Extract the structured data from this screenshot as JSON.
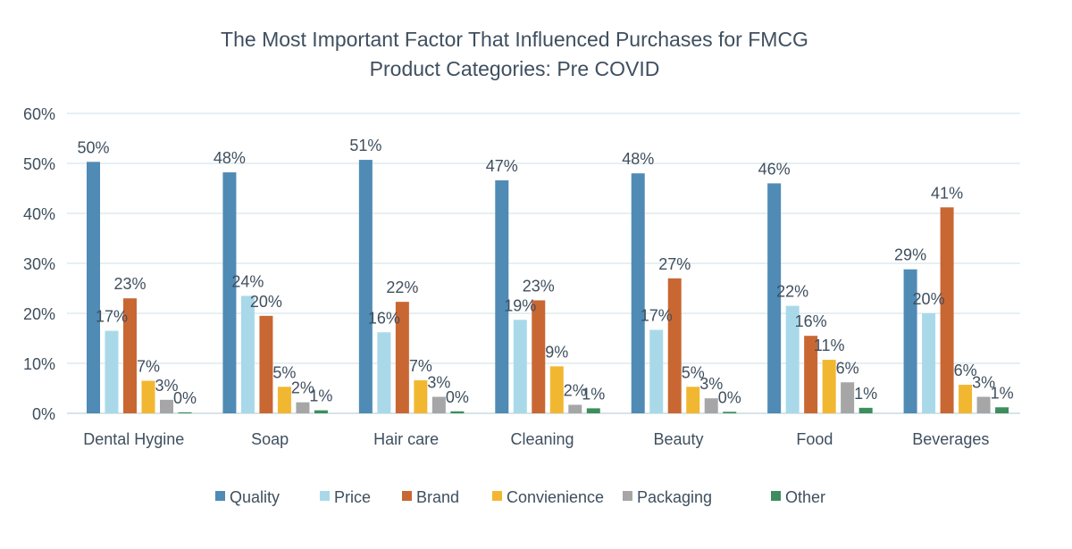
{
  "chart_data": {
    "type": "bar",
    "title": "The Most Important Factor That Influenced Purchases for FMCG Product Categories: Pre COVID",
    "title_lines": [
      "The Most Important Factor That Influenced Purchases for FMCG",
      "Product Categories: Pre COVID"
    ],
    "xlabel": "",
    "ylabel": "",
    "ylim": [
      0,
      60
    ],
    "yticks": [
      "0%",
      "10%",
      "20%",
      "30%",
      "40%",
      "50%",
      "60%"
    ],
    "grid": true,
    "legend_position": "bottom",
    "categories": [
      "Dental Hygine",
      "Soap",
      "Hair care",
      "Cleaning",
      "Beauty",
      "Food",
      "Beverages"
    ],
    "series": [
      {
        "name": "Quality",
        "color": "#4F8BB5",
        "values": [
          50.3,
          48.2,
          50.7,
          46.6,
          48.0,
          46.0,
          28.8
        ],
        "labels": [
          "50%",
          "48%",
          "51%",
          "47%",
          "48%",
          "46%",
          "29%"
        ]
      },
      {
        "name": "Price",
        "color": "#A9D9E9",
        "values": [
          16.5,
          23.5,
          16.2,
          18.7,
          16.7,
          21.5,
          20.0
        ],
        "labels": [
          "17%",
          "24%",
          "16%",
          "19%",
          "17%",
          "22%",
          "20%"
        ]
      },
      {
        "name": "Brand",
        "color": "#C96733",
        "values": [
          23.0,
          19.5,
          22.3,
          22.6,
          27.0,
          15.5,
          41.2
        ],
        "labels": [
          "23%",
          "20%",
          "22%",
          "23%",
          "27%",
          "16%",
          "41%"
        ]
      },
      {
        "name": "Convienience",
        "color": "#F2B731",
        "values": [
          6.5,
          5.3,
          6.6,
          9.4,
          5.3,
          10.7,
          5.7
        ],
        "labels": [
          "7%",
          "5%",
          "7%",
          "9%",
          "5%",
          "11%",
          "6%"
        ]
      },
      {
        "name": "Packaging",
        "color": "#A6A6A6",
        "values": [
          2.7,
          2.2,
          3.3,
          1.7,
          3.0,
          6.2,
          3.3
        ],
        "labels": [
          "3%",
          "2%",
          "3%",
          "2%",
          "3%",
          "6%",
          "3%"
        ]
      },
      {
        "name": "Other",
        "color": "#3D8E5C",
        "values": [
          0.2,
          0.6,
          0.4,
          1.0,
          0.3,
          1.1,
          1.2
        ],
        "labels": [
          "0%",
          "1%",
          "0%",
          "1%",
          "0%",
          "1%",
          "1%"
        ]
      }
    ]
  }
}
